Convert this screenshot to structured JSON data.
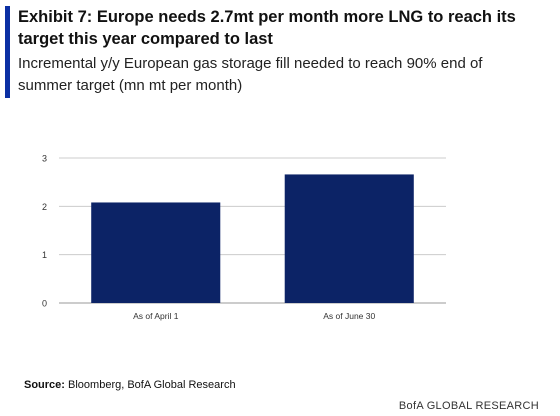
{
  "header": {
    "title": "Exhibit 7: Europe needs 2.7mt per month more LNG to reach its target this year compared to last",
    "subtitle": "Incremental y/y European gas storage fill needed to reach 90% end of summer target (mn mt per month)"
  },
  "colors": {
    "accent": "#0b2fa3",
    "bar": "#0c2366",
    "grid": "#cccccc"
  },
  "chart_data": {
    "type": "bar",
    "title": "Exhibit 7: Europe needs 2.7mt per month more LNG to reach its target this year compared to last",
    "subtitle": "Incremental y/y European gas storage fill needed to reach 90% end of summer target (mn mt per month)",
    "categories": [
      "As of April 1",
      "As of June 30"
    ],
    "values": [
      2.08,
      2.66
    ],
    "ylim": [
      0,
      3
    ],
    "yticks": [
      "0",
      "1",
      "2",
      "3"
    ],
    "xlabel": "",
    "ylabel": "",
    "grid": true,
    "legend": "none"
  },
  "footer": {
    "source_label": "Source:",
    "source_text": " Bloomberg, BofA Global Research",
    "brand": "BofA GLOBAL RESEARCH"
  }
}
